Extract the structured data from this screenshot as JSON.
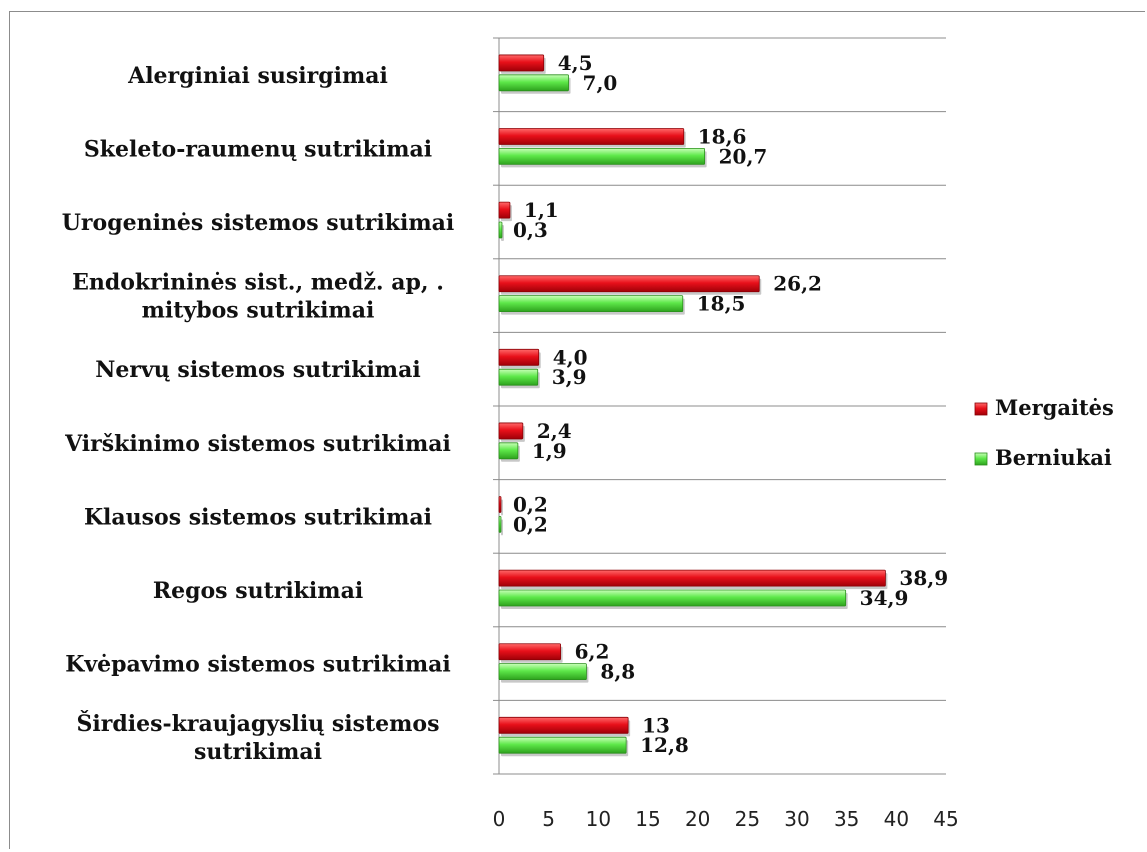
{
  "chart_data": {
    "type": "bar",
    "orientation": "horizontal",
    "categories": [
      "Alerginiai susirgimai",
      "Skeleto-raumenų sutrikimai",
      "Urogeninės sistemos sutrikimai",
      "Endokrininės sist., medž. ap, . mitybos sutrikimai",
      "Nervų sistemos sutrikimai",
      "Virškinimo sistemos sutrikimai",
      "Klausos sistemos sutrikimai",
      "Regos sutrikimai",
      "Kvėpavimo sistemos sutrikimai",
      "Širdies-kraujagyslių sistemos sutrikimai"
    ],
    "series": [
      {
        "name": "Mergaitės",
        "color": "#e8101a",
        "values": [
          4.5,
          18.6,
          1.1,
          26.2,
          4.0,
          2.4,
          0.2,
          38.9,
          6.2,
          13
        ],
        "labels": [
          "4,5",
          "18,6",
          "1,1",
          "26,2",
          "4,0",
          "2,4",
          "0,2",
          "38,9",
          "6,2",
          "13"
        ]
      },
      {
        "name": "Berniukai",
        "color": "#5ee84a",
        "values": [
          7.0,
          20.7,
          0.3,
          18.5,
          3.9,
          1.9,
          0.2,
          34.9,
          8.8,
          12.8
        ],
        "labels": [
          "7,0",
          "20,7",
          "0,3",
          "18,5",
          "3,9",
          "1,9",
          "0,2",
          "34,9",
          "8,8",
          "12,8"
        ]
      }
    ],
    "xlim": [
      0,
      45
    ],
    "x_ticks": [
      "0",
      "5",
      "10",
      "15",
      "20",
      "25",
      "30",
      "35",
      "40",
      "45"
    ],
    "grid": true,
    "legend_position": "right",
    "title": "",
    "xlabel": "",
    "ylabel": ""
  }
}
